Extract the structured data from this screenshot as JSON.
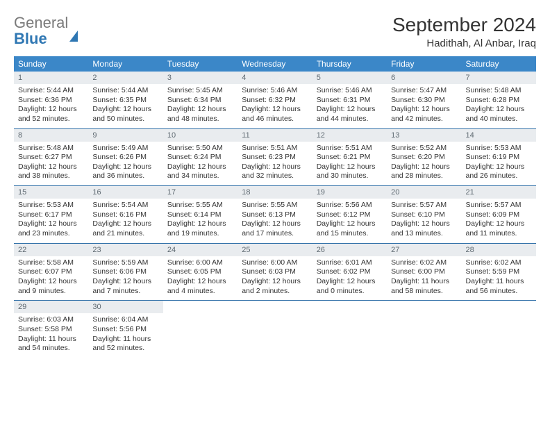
{
  "brand": {
    "word1": "General",
    "word2": "Blue"
  },
  "title": "September 2024",
  "location": "Hadithah, Al Anbar, Iraq",
  "colors": {
    "header_bg": "#3b87c8",
    "header_text": "#ffffff",
    "daynum_bg": "#e9ecef",
    "daynum_text": "#5f6a72",
    "row_border": "#2f6fa8",
    "body_text": "#333333",
    "logo_gray": "#7a7a7a",
    "logo_blue": "#2f77b3",
    "background": "#ffffff"
  },
  "typography": {
    "title_fontsize": 28,
    "location_fontsize": 15,
    "header_fontsize": 12,
    "daynum_fontsize": 11,
    "cell_fontsize": 10.5
  },
  "weekdays": [
    "Sunday",
    "Monday",
    "Tuesday",
    "Wednesday",
    "Thursday",
    "Friday",
    "Saturday"
  ],
  "days": [
    {
      "n": "1",
      "sr": "5:44 AM",
      "ss": "6:36 PM",
      "dl": "12 hours and 52 minutes."
    },
    {
      "n": "2",
      "sr": "5:44 AM",
      "ss": "6:35 PM",
      "dl": "12 hours and 50 minutes."
    },
    {
      "n": "3",
      "sr": "5:45 AM",
      "ss": "6:34 PM",
      "dl": "12 hours and 48 minutes."
    },
    {
      "n": "4",
      "sr": "5:46 AM",
      "ss": "6:32 PM",
      "dl": "12 hours and 46 minutes."
    },
    {
      "n": "5",
      "sr": "5:46 AM",
      "ss": "6:31 PM",
      "dl": "12 hours and 44 minutes."
    },
    {
      "n": "6",
      "sr": "5:47 AM",
      "ss": "6:30 PM",
      "dl": "12 hours and 42 minutes."
    },
    {
      "n": "7",
      "sr": "5:48 AM",
      "ss": "6:28 PM",
      "dl": "12 hours and 40 minutes."
    },
    {
      "n": "8",
      "sr": "5:48 AM",
      "ss": "6:27 PM",
      "dl": "12 hours and 38 minutes."
    },
    {
      "n": "9",
      "sr": "5:49 AM",
      "ss": "6:26 PM",
      "dl": "12 hours and 36 minutes."
    },
    {
      "n": "10",
      "sr": "5:50 AM",
      "ss": "6:24 PM",
      "dl": "12 hours and 34 minutes."
    },
    {
      "n": "11",
      "sr": "5:51 AM",
      "ss": "6:23 PM",
      "dl": "12 hours and 32 minutes."
    },
    {
      "n": "12",
      "sr": "5:51 AM",
      "ss": "6:21 PM",
      "dl": "12 hours and 30 minutes."
    },
    {
      "n": "13",
      "sr": "5:52 AM",
      "ss": "6:20 PM",
      "dl": "12 hours and 28 minutes."
    },
    {
      "n": "14",
      "sr": "5:53 AM",
      "ss": "6:19 PM",
      "dl": "12 hours and 26 minutes."
    },
    {
      "n": "15",
      "sr": "5:53 AM",
      "ss": "6:17 PM",
      "dl": "12 hours and 23 minutes."
    },
    {
      "n": "16",
      "sr": "5:54 AM",
      "ss": "6:16 PM",
      "dl": "12 hours and 21 minutes."
    },
    {
      "n": "17",
      "sr": "5:55 AM",
      "ss": "6:14 PM",
      "dl": "12 hours and 19 minutes."
    },
    {
      "n": "18",
      "sr": "5:55 AM",
      "ss": "6:13 PM",
      "dl": "12 hours and 17 minutes."
    },
    {
      "n": "19",
      "sr": "5:56 AM",
      "ss": "6:12 PM",
      "dl": "12 hours and 15 minutes."
    },
    {
      "n": "20",
      "sr": "5:57 AM",
      "ss": "6:10 PM",
      "dl": "12 hours and 13 minutes."
    },
    {
      "n": "21",
      "sr": "5:57 AM",
      "ss": "6:09 PM",
      "dl": "12 hours and 11 minutes."
    },
    {
      "n": "22",
      "sr": "5:58 AM",
      "ss": "6:07 PM",
      "dl": "12 hours and 9 minutes."
    },
    {
      "n": "23",
      "sr": "5:59 AM",
      "ss": "6:06 PM",
      "dl": "12 hours and 7 minutes."
    },
    {
      "n": "24",
      "sr": "6:00 AM",
      "ss": "6:05 PM",
      "dl": "12 hours and 4 minutes."
    },
    {
      "n": "25",
      "sr": "6:00 AM",
      "ss": "6:03 PM",
      "dl": "12 hours and 2 minutes."
    },
    {
      "n": "26",
      "sr": "6:01 AM",
      "ss": "6:02 PM",
      "dl": "12 hours and 0 minutes."
    },
    {
      "n": "27",
      "sr": "6:02 AM",
      "ss": "6:00 PM",
      "dl": "11 hours and 58 minutes."
    },
    {
      "n": "28",
      "sr": "6:02 AM",
      "ss": "5:59 PM",
      "dl": "11 hours and 56 minutes."
    },
    {
      "n": "29",
      "sr": "6:03 AM",
      "ss": "5:58 PM",
      "dl": "11 hours and 54 minutes."
    },
    {
      "n": "30",
      "sr": "6:04 AM",
      "ss": "5:56 PM",
      "dl": "11 hours and 52 minutes."
    }
  ],
  "labels": {
    "sunrise": "Sunrise:",
    "sunset": "Sunset:",
    "daylight": "Daylight:"
  }
}
